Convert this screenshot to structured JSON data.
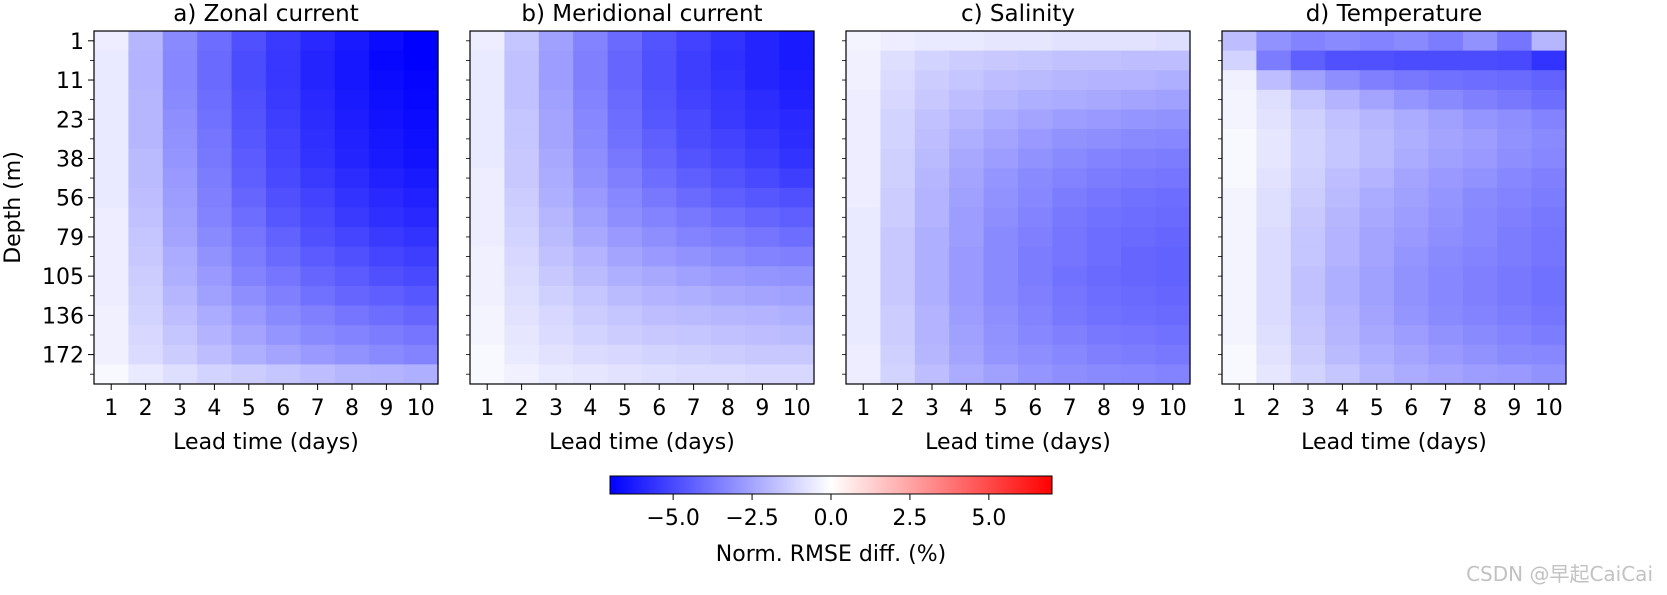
{
  "chart_data": {
    "type": "heatmap",
    "panels": [
      {
        "title": "a) Zonal current",
        "xlabel": "Lead time (days)",
        "ylabel": "Depth (m)",
        "x": [
          1,
          2,
          3,
          4,
          5,
          6,
          7,
          8,
          9,
          10
        ],
        "y_tick_labels": [
          "1",
          "11",
          "23",
          "38",
          "56",
          "79",
          "105",
          "136",
          "172"
        ],
        "values": [
          [
            -0.5,
            -2.0,
            -3.2,
            -4.0,
            -4.8,
            -5.4,
            -5.9,
            -6.3,
            -6.7,
            -7.0
          ],
          [
            -0.6,
            -2.1,
            -3.3,
            -4.1,
            -4.9,
            -5.5,
            -6.0,
            -6.4,
            -6.8,
            -7.0
          ],
          [
            -0.6,
            -2.1,
            -3.3,
            -4.1,
            -4.9,
            -5.5,
            -6.0,
            -6.4,
            -6.7,
            -6.9
          ],
          [
            -0.6,
            -2.0,
            -3.2,
            -4.0,
            -4.8,
            -5.4,
            -5.9,
            -6.3,
            -6.6,
            -6.8
          ],
          [
            -0.6,
            -2.0,
            -3.1,
            -3.9,
            -4.7,
            -5.3,
            -5.8,
            -6.2,
            -6.5,
            -6.7
          ],
          [
            -0.6,
            -2.0,
            -3.0,
            -3.8,
            -4.6,
            -5.2,
            -5.7,
            -6.1,
            -6.4,
            -6.6
          ],
          [
            -0.6,
            -1.9,
            -2.9,
            -3.7,
            -4.5,
            -5.1,
            -5.6,
            -6.0,
            -6.3,
            -6.5
          ],
          [
            -0.6,
            -1.9,
            -2.8,
            -3.6,
            -4.4,
            -5.0,
            -5.4,
            -5.8,
            -6.1,
            -6.3
          ],
          [
            -0.6,
            -1.8,
            -2.7,
            -3.5,
            -4.2,
            -4.8,
            -5.2,
            -5.6,
            -5.9,
            -6.1
          ],
          [
            -0.5,
            -1.7,
            -2.6,
            -3.4,
            -4.0,
            -4.6,
            -5.0,
            -5.4,
            -5.7,
            -5.9
          ],
          [
            -0.5,
            -1.6,
            -2.5,
            -3.2,
            -3.8,
            -4.3,
            -4.8,
            -5.1,
            -5.4,
            -5.6
          ],
          [
            -0.5,
            -1.5,
            -2.3,
            -3.0,
            -3.6,
            -4.1,
            -4.5,
            -4.8,
            -5.1,
            -5.3
          ],
          [
            -0.5,
            -1.4,
            -2.2,
            -2.8,
            -3.4,
            -3.8,
            -4.2,
            -4.5,
            -4.8,
            -5.0
          ],
          [
            -0.5,
            -1.3,
            -2.0,
            -2.6,
            -3.1,
            -3.5,
            -3.9,
            -4.2,
            -4.4,
            -4.6
          ],
          [
            -0.4,
            -1.2,
            -1.8,
            -2.3,
            -2.8,
            -3.2,
            -3.5,
            -3.8,
            -4.0,
            -4.2
          ],
          [
            -0.4,
            -1.1,
            -1.6,
            -2.1,
            -2.5,
            -2.9,
            -3.2,
            -3.4,
            -3.6,
            -3.8
          ],
          [
            -0.4,
            -1.0,
            -1.4,
            -1.8,
            -2.2,
            -2.5,
            -2.8,
            -3.0,
            -3.2,
            -3.4
          ],
          [
            -0.2,
            -0.6,
            -0.9,
            -1.2,
            -1.4,
            -1.6,
            -1.8,
            -2.0,
            -2.1,
            -2.2
          ]
        ]
      },
      {
        "title": "b) Meridional current",
        "xlabel": "Lead time (days)",
        "ylabel": "",
        "x": [
          1,
          2,
          3,
          4,
          5,
          6,
          7,
          8,
          9,
          10
        ],
        "y_tick_labels": [],
        "values": [
          [
            -0.5,
            -1.6,
            -2.6,
            -3.4,
            -4.1,
            -4.7,
            -5.2,
            -5.6,
            -6.0,
            -6.3
          ],
          [
            -0.6,
            -1.7,
            -2.7,
            -3.5,
            -4.2,
            -4.8,
            -5.3,
            -5.7,
            -6.0,
            -6.3
          ],
          [
            -0.6,
            -1.7,
            -2.7,
            -3.5,
            -4.2,
            -4.8,
            -5.3,
            -5.6,
            -6.0,
            -6.2
          ],
          [
            -0.6,
            -1.7,
            -2.6,
            -3.4,
            -4.1,
            -4.7,
            -5.2,
            -5.5,
            -5.8,
            -6.1
          ],
          [
            -0.6,
            -1.6,
            -2.5,
            -3.3,
            -4.0,
            -4.6,
            -5.0,
            -5.4,
            -5.7,
            -5.9
          ],
          [
            -0.6,
            -1.6,
            -2.5,
            -3.2,
            -3.9,
            -4.4,
            -4.9,
            -5.2,
            -5.5,
            -5.8
          ],
          [
            -0.6,
            -1.5,
            -2.4,
            -3.1,
            -3.7,
            -4.2,
            -4.7,
            -5.0,
            -5.3,
            -5.6
          ],
          [
            -0.5,
            -1.5,
            -2.3,
            -3.0,
            -3.5,
            -4.0,
            -4.4,
            -4.7,
            -5.0,
            -5.3
          ],
          [
            -0.5,
            -1.4,
            -2.2,
            -2.8,
            -3.3,
            -3.7,
            -4.1,
            -4.4,
            -4.6,
            -4.8
          ],
          [
            -0.5,
            -1.3,
            -2.0,
            -2.6,
            -3.1,
            -3.4,
            -3.7,
            -4.0,
            -4.2,
            -4.4
          ],
          [
            -0.5,
            -1.2,
            -1.9,
            -2.4,
            -2.8,
            -3.1,
            -3.4,
            -3.6,
            -3.8,
            -4.0
          ],
          [
            -0.4,
            -1.1,
            -1.7,
            -2.1,
            -2.5,
            -2.8,
            -3.0,
            -3.2,
            -3.4,
            -3.5
          ],
          [
            -0.4,
            -1.0,
            -1.5,
            -1.9,
            -2.2,
            -2.4,
            -2.6,
            -2.8,
            -2.9,
            -3.0
          ],
          [
            -0.4,
            -0.9,
            -1.3,
            -1.6,
            -1.9,
            -2.1,
            -2.2,
            -2.4,
            -2.5,
            -2.6
          ],
          [
            -0.3,
            -0.8,
            -1.1,
            -1.4,
            -1.6,
            -1.8,
            -1.9,
            -2.0,
            -2.1,
            -2.2
          ],
          [
            -0.3,
            -0.7,
            -1.0,
            -1.2,
            -1.4,
            -1.5,
            -1.6,
            -1.7,
            -1.8,
            -1.9
          ],
          [
            -0.2,
            -0.6,
            -0.8,
            -1.0,
            -1.1,
            -1.2,
            -1.3,
            -1.4,
            -1.5,
            -1.5
          ],
          [
            -0.2,
            -0.4,
            -0.6,
            -0.7,
            -0.8,
            -0.9,
            -1.0,
            -1.0,
            -1.1,
            -1.1
          ]
        ]
      },
      {
        "title": "c) Salinity",
        "xlabel": "Lead time (days)",
        "ylabel": "",
        "x": [
          1,
          2,
          3,
          4,
          5,
          6,
          7,
          8,
          9,
          10
        ],
        "y_tick_labels": [],
        "values": [
          [
            -0.3,
            -0.5,
            -0.6,
            -0.6,
            -0.7,
            -0.7,
            -0.8,
            -0.8,
            -0.8,
            -0.9
          ],
          [
            -0.4,
            -0.9,
            -1.2,
            -1.4,
            -1.5,
            -1.6,
            -1.7,
            -1.7,
            -1.8,
            -1.8
          ],
          [
            -0.4,
            -1.0,
            -1.4,
            -1.6,
            -1.8,
            -1.9,
            -2.0,
            -2.1,
            -2.1,
            -2.2
          ],
          [
            -0.5,
            -1.1,
            -1.5,
            -1.8,
            -2.0,
            -2.2,
            -2.3,
            -2.4,
            -2.5,
            -2.6
          ],
          [
            -0.5,
            -1.2,
            -1.7,
            -2.0,
            -2.3,
            -2.5,
            -2.7,
            -2.8,
            -2.9,
            -3.0
          ],
          [
            -0.5,
            -1.2,
            -1.8,
            -2.2,
            -2.5,
            -2.8,
            -3.0,
            -3.1,
            -3.2,
            -3.3
          ],
          [
            -0.5,
            -1.3,
            -1.9,
            -2.4,
            -2.7,
            -3.0,
            -3.2,
            -3.4,
            -3.5,
            -3.6
          ],
          [
            -0.5,
            -1.3,
            -2.0,
            -2.5,
            -2.9,
            -3.2,
            -3.4,
            -3.6,
            -3.7,
            -3.8
          ],
          [
            -0.5,
            -1.4,
            -2.1,
            -2.6,
            -3.0,
            -3.3,
            -3.6,
            -3.8,
            -3.9,
            -4.0
          ],
          [
            -0.6,
            -1.4,
            -2.1,
            -2.7,
            -3.1,
            -3.4,
            -3.7,
            -3.9,
            -4.0,
            -4.1
          ],
          [
            -0.6,
            -1.5,
            -2.2,
            -2.7,
            -3.2,
            -3.5,
            -3.8,
            -4.0,
            -4.1,
            -4.2
          ],
          [
            -0.6,
            -1.5,
            -2.2,
            -2.8,
            -3.2,
            -3.6,
            -3.8,
            -4.0,
            -4.2,
            -4.3
          ],
          [
            -0.6,
            -1.5,
            -2.2,
            -2.8,
            -3.2,
            -3.6,
            -3.9,
            -4.1,
            -4.2,
            -4.3
          ],
          [
            -0.6,
            -1.5,
            -2.2,
            -2.8,
            -3.2,
            -3.5,
            -3.8,
            -4.0,
            -4.1,
            -4.2
          ],
          [
            -0.6,
            -1.4,
            -2.1,
            -2.7,
            -3.1,
            -3.4,
            -3.7,
            -3.9,
            -4.0,
            -4.1
          ],
          [
            -0.6,
            -1.4,
            -2.1,
            -2.6,
            -3.0,
            -3.3,
            -3.5,
            -3.7,
            -3.8,
            -3.9
          ],
          [
            -0.5,
            -1.3,
            -2.0,
            -2.5,
            -2.9,
            -3.1,
            -3.3,
            -3.5,
            -3.6,
            -3.7
          ],
          [
            -0.5,
            -1.2,
            -1.8,
            -2.3,
            -2.6,
            -2.9,
            -3.1,
            -3.2,
            -3.3,
            -3.4
          ]
        ]
      },
      {
        "title": "d) Temperature",
        "xlabel": "Lead time (days)",
        "ylabel": "",
        "x": [
          1,
          2,
          3,
          4,
          5,
          6,
          7,
          8,
          9,
          10
        ],
        "y_tick_labels": [],
        "values": [
          [
            -1.8,
            -3.0,
            -3.4,
            -3.2,
            -3.4,
            -3.2,
            -3.6,
            -3.0,
            -3.8,
            -2.0
          ],
          [
            -1.2,
            -3.6,
            -4.4,
            -4.8,
            -4.8,
            -4.9,
            -4.9,
            -4.9,
            -5.0,
            -5.6
          ],
          [
            -0.4,
            -1.8,
            -2.6,
            -3.1,
            -3.5,
            -3.7,
            -3.9,
            -4.0,
            -4.1,
            -4.3
          ],
          [
            -0.3,
            -0.9,
            -1.6,
            -2.1,
            -2.5,
            -2.9,
            -3.2,
            -3.5,
            -3.7,
            -4.0
          ],
          [
            -0.3,
            -0.8,
            -1.3,
            -1.7,
            -2.0,
            -2.3,
            -2.6,
            -2.9,
            -3.1,
            -3.4
          ],
          [
            -0.2,
            -0.7,
            -1.2,
            -1.6,
            -1.9,
            -2.2,
            -2.5,
            -2.7,
            -3.0,
            -3.2
          ],
          [
            -0.2,
            -0.7,
            -1.2,
            -1.6,
            -1.9,
            -2.3,
            -2.6,
            -2.8,
            -3.1,
            -3.3
          ],
          [
            -0.2,
            -0.8,
            -1.3,
            -1.8,
            -2.1,
            -2.5,
            -2.8,
            -3.0,
            -3.3,
            -3.5
          ],
          [
            -0.3,
            -0.9,
            -1.4,
            -1.9,
            -2.3,
            -2.6,
            -2.9,
            -3.2,
            -3.4,
            -3.6
          ],
          [
            -0.3,
            -0.9,
            -1.5,
            -2.0,
            -2.4,
            -2.7,
            -3.0,
            -3.3,
            -3.5,
            -3.7
          ],
          [
            -0.3,
            -1.0,
            -1.6,
            -2.1,
            -2.5,
            -2.8,
            -3.1,
            -3.3,
            -3.6,
            -3.8
          ],
          [
            -0.3,
            -1.0,
            -1.6,
            -2.1,
            -2.5,
            -2.9,
            -3.2,
            -3.4,
            -3.6,
            -3.8
          ],
          [
            -0.3,
            -1.0,
            -1.7,
            -2.2,
            -2.6,
            -3.0,
            -3.3,
            -3.5,
            -3.7,
            -3.9
          ],
          [
            -0.3,
            -1.0,
            -1.7,
            -2.2,
            -2.6,
            -3.0,
            -3.3,
            -3.5,
            -3.7,
            -3.9
          ],
          [
            -0.3,
            -1.0,
            -1.6,
            -2.1,
            -2.5,
            -2.9,
            -3.2,
            -3.4,
            -3.6,
            -3.8
          ],
          [
            -0.3,
            -0.9,
            -1.5,
            -2.0,
            -2.4,
            -2.7,
            -3.0,
            -3.2,
            -3.4,
            -3.6
          ],
          [
            -0.2,
            -0.8,
            -1.4,
            -1.9,
            -2.2,
            -2.5,
            -2.8,
            -3.0,
            -3.2,
            -3.3
          ],
          [
            -0.2,
            -0.7,
            -1.2,
            -1.6,
            -2.0,
            -2.3,
            -2.5,
            -2.7,
            -2.8,
            -3.0
          ]
        ]
      }
    ],
    "colorbar": {
      "label": "Norm. RMSE diff. (%)",
      "vmin": -7,
      "vmax": 7,
      "ticks": [
        -5.0,
        -2.5,
        0.0,
        2.5,
        5.0
      ],
      "tick_labels": [
        "−5.0",
        "−2.5",
        "0.0",
        "2.5",
        "5.0"
      ],
      "cmap": "bwr",
      "colors": {
        "low": "#0000ff",
        "mid": "#ffffff",
        "high": "#ff0000"
      }
    }
  },
  "watermark": "CSDN @早起CaiCai"
}
